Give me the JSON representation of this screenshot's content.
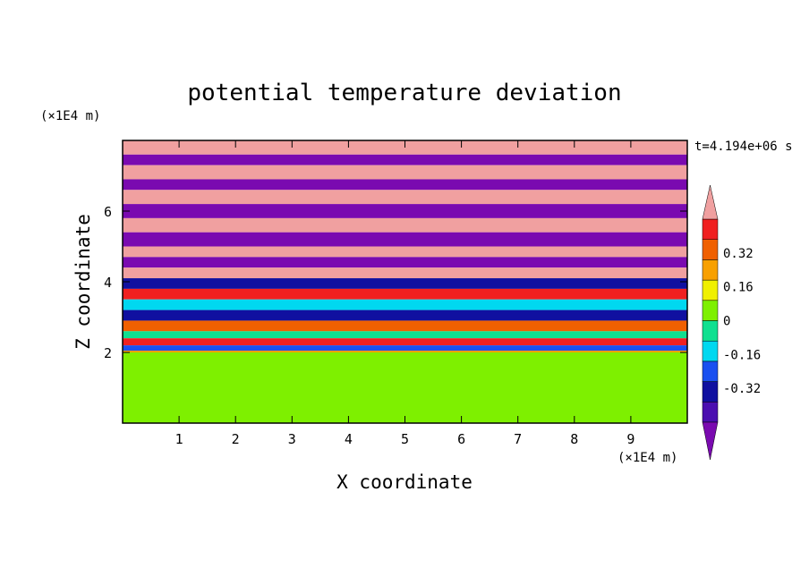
{
  "chart_data": {
    "type": "heatmap",
    "title": "potential temperature deviation",
    "xlabel": "X coordinate",
    "ylabel": "Z coordinate",
    "x_unit": "(×1E4 m)",
    "y_unit": "(×1E4 m)",
    "time_label": "t=4.194e+06 s",
    "xlim": [
      0,
      10
    ],
    "ylim": [
      0,
      8
    ],
    "x_ticks": [
      1,
      2,
      3,
      4,
      5,
      6,
      7,
      8,
      9
    ],
    "y_ticks": [
      2,
      4,
      6
    ],
    "colorbar": {
      "levels": [
        -0.48,
        -0.4,
        -0.32,
        -0.24,
        -0.16,
        -0.08,
        0,
        0.08,
        0.16,
        0.24,
        0.32,
        0.4,
        0.48
      ],
      "labels": [
        "0.32",
        "0.16",
        "0",
        "-0.16",
        "-0.32"
      ],
      "label_values": [
        0.32,
        0.16,
        0,
        -0.16,
        -0.32
      ],
      "colors": [
        "#7a0ab0",
        "#4b0fb0",
        "#1010a0",
        "#1a50f0",
        "#00d8f0",
        "#10e090",
        "#7ef000",
        "#f0f000",
        "#f8a000",
        "#f06000",
        "#f02020",
        "#f0a0a0"
      ],
      "extend": "both"
    },
    "layers": [
      {
        "z_top": 8.0,
        "value": 0.5
      },
      {
        "z_top": 7.6,
        "value": -0.5
      },
      {
        "z_top": 7.3,
        "value": 0.5
      },
      {
        "z_top": 6.9,
        "value": -0.5
      },
      {
        "z_top": 6.6,
        "value": 0.5
      },
      {
        "z_top": 6.2,
        "value": -0.5
      },
      {
        "z_top": 5.8,
        "value": 0.5
      },
      {
        "z_top": 5.4,
        "value": -0.5
      },
      {
        "z_top": 5.0,
        "value": 0.5
      },
      {
        "z_top": 4.7,
        "value": -0.5
      },
      {
        "z_top": 4.4,
        "value": 0.5
      },
      {
        "z_top": 4.1,
        "value": -0.4
      },
      {
        "z_top": 3.8,
        "value": 0.3
      },
      {
        "z_top": 3.5,
        "value": -0.2
      },
      {
        "z_top": 3.2,
        "value": -0.4
      },
      {
        "z_top": 2.9,
        "value": 0.2
      },
      {
        "z_top": 2.6,
        "value": -0.1
      },
      {
        "z_top": 2.4,
        "value": 0.3
      },
      {
        "z_top": 2.2,
        "value": -0.3
      },
      {
        "z_top": 2.05,
        "value": 0.1
      },
      {
        "z_top": 2.0,
        "value": -0.03
      }
    ]
  }
}
